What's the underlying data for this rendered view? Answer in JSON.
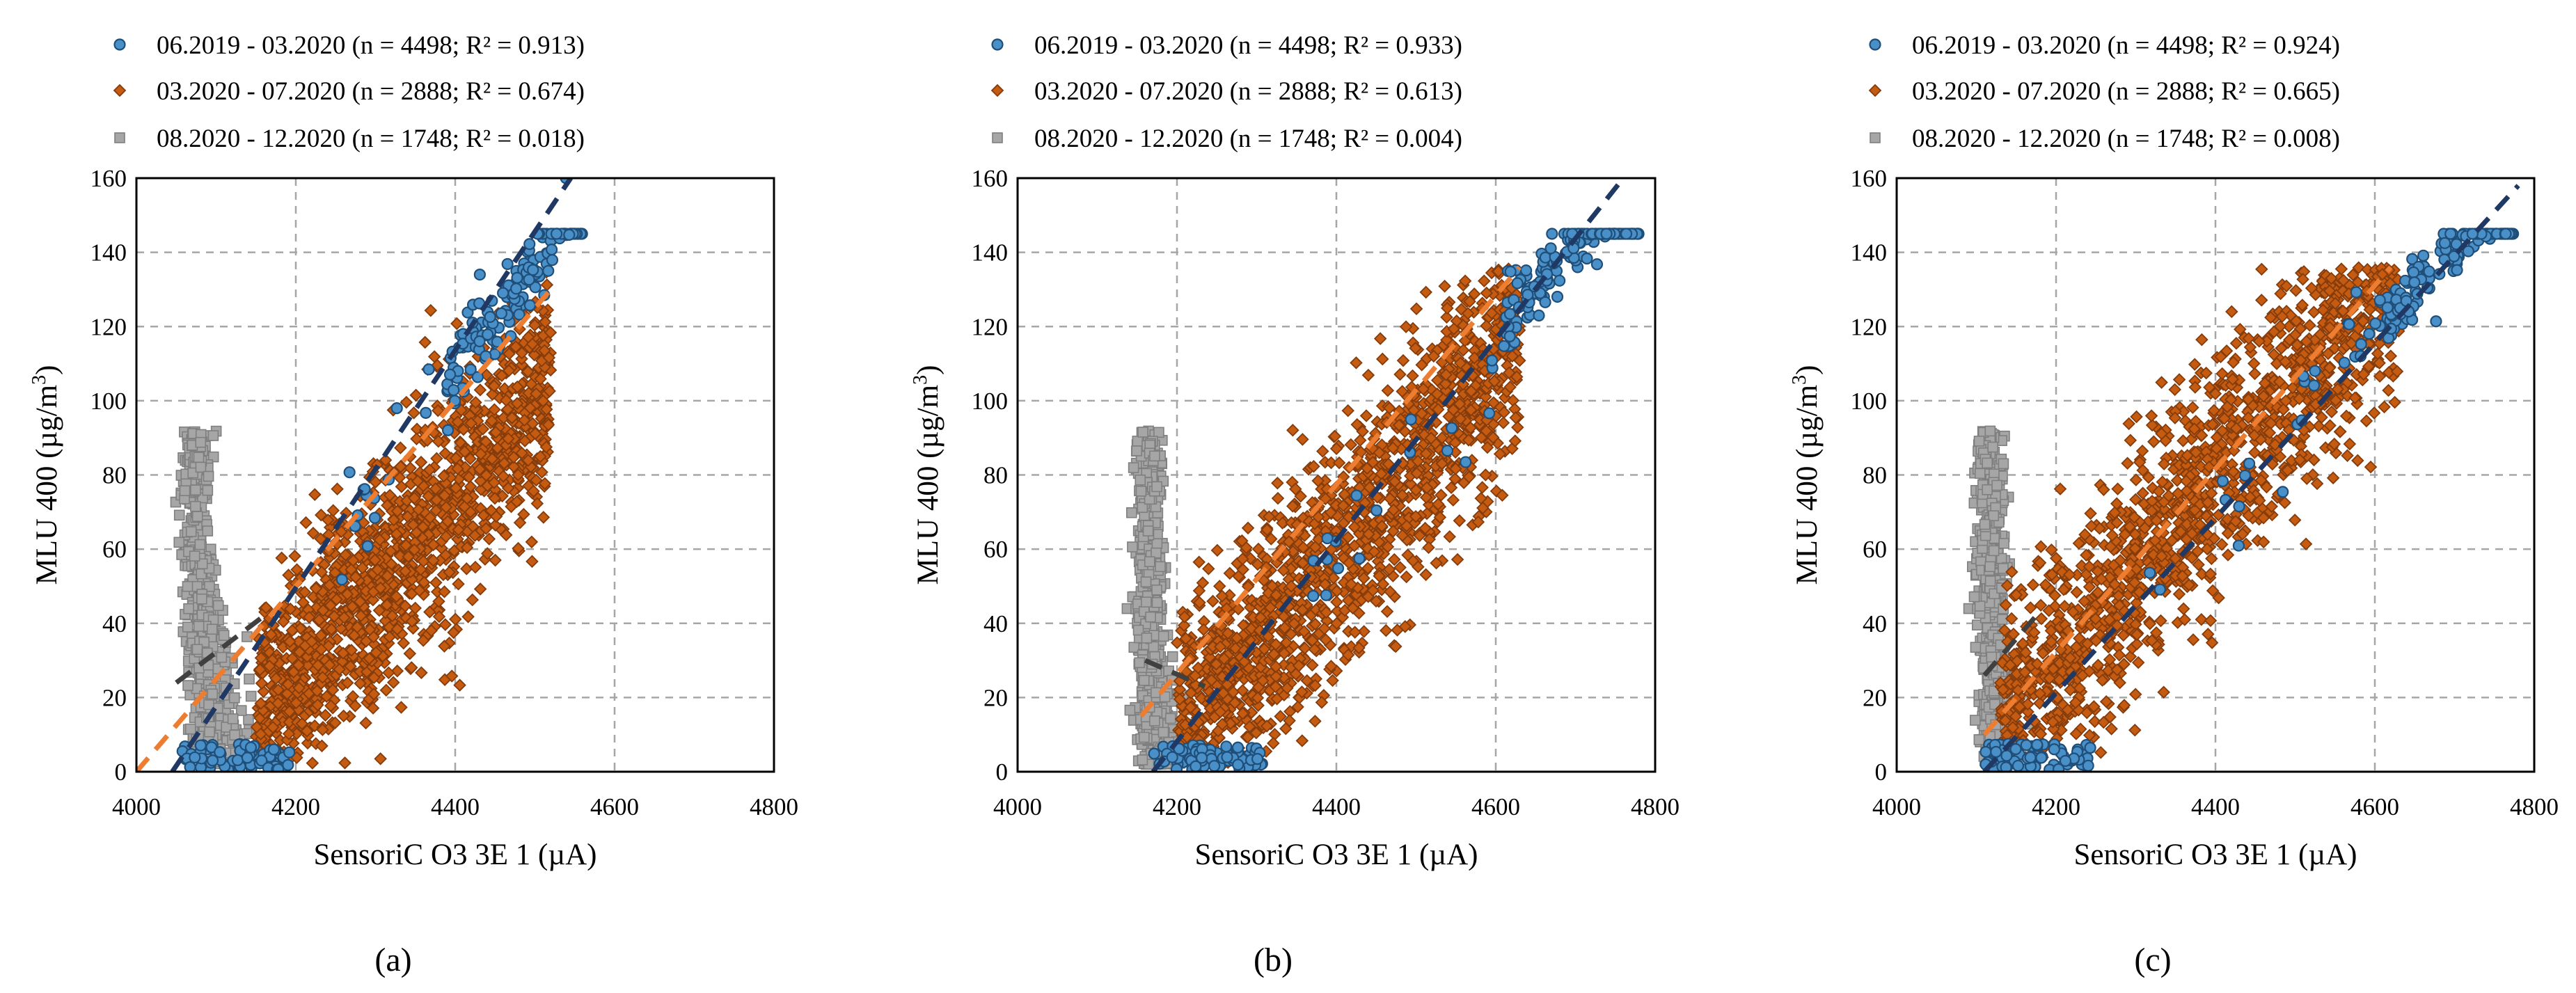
{
  "figure": {
    "colors": {
      "blue_fill": "#4a90c8",
      "blue_edge": "#1f4e79",
      "orange_fill": "#c55a11",
      "orange_edge": "#843c0c",
      "gray_fill": "#a6a6a6",
      "gray_edge": "#7f7f7f",
      "trend_blue": "#1f3864",
      "trend_orange": "#ed7d31",
      "trend_gray": "#404040",
      "grid": "#a6a6a6"
    }
  },
  "chart_data": [
    {
      "type": "scatter",
      "caption": "(a)",
      "xlabel": "SensoriC O3 3E 1 (µA)",
      "ylabel_main": "MLU 400 (µg/m",
      "ylabel_sup": "3",
      "ylabel_tail": ")",
      "xlim": [
        4000,
        4800
      ],
      "ylim": [
        0,
        160
      ],
      "xticks": [
        "4000",
        "4200",
        "4400",
        "4600",
        "4800"
      ],
      "yticks": [
        "0",
        "20",
        "40",
        "60",
        "80",
        "100",
        "120",
        "140",
        "160"
      ],
      "series": [
        {
          "name": "06.2019 - 03.2020 (n = 4498; R² = 0.913)",
          "n": 4498,
          "r2": 0.913,
          "marker": "circle",
          "trend": [
            [
              4045,
              0
            ],
            [
              4545,
              160
            ]
          ]
        },
        {
          "name": "03.2020 - 07.2020 (n = 2888; R² = 0.674)",
          "n": 2888,
          "r2": 0.674,
          "marker": "diamond",
          "trend": [
            [
              4000,
              0
            ],
            [
              4520,
              130
            ]
          ]
        },
        {
          "name": "08.2020 - 12.2020 (n = 1748; R² = 0.018)",
          "n": 1748,
          "r2": 0.018,
          "marker": "square",
          "trend": [
            [
              4050,
              24
            ],
            [
              4160,
              42
            ]
          ]
        }
      ]
    },
    {
      "type": "scatter",
      "caption": "(b)",
      "xlabel": "SensoriC O3 3E 1 (µA)",
      "ylabel_main": "MLU 400 (µg/m",
      "ylabel_sup": "3",
      "ylabel_tail": ")",
      "xlim": [
        4000,
        4800
      ],
      "ylim": [
        0,
        160
      ],
      "xticks": [
        "4000",
        "4200",
        "4400",
        "4600",
        "4800"
      ],
      "yticks": [
        "0",
        "20",
        "40",
        "60",
        "80",
        "100",
        "120",
        "140",
        "160"
      ],
      "series": [
        {
          "name": "06.2019 - 03.2020 (n = 4498; R² = 0.933)",
          "n": 4498,
          "r2": 0.933,
          "marker": "circle",
          "trend": [
            [
              4170,
              0
            ],
            [
              4760,
              160
            ]
          ]
        },
        {
          "name": "03.2020 - 07.2020 (n = 2888; R² = 0.613)",
          "n": 2888,
          "r2": 0.613,
          "marker": "diamond",
          "trend": [
            [
              4155,
              15
            ],
            [
              4630,
              136
            ]
          ]
        },
        {
          "name": "08.2020 - 12.2020 (n = 1748; R² = 0.004)",
          "n": 1748,
          "r2": 0.004,
          "marker": "square",
          "trend": [
            [
              4160,
              30
            ],
            [
              4235,
              23
            ]
          ]
        }
      ]
    },
    {
      "type": "scatter",
      "caption": "(c)",
      "xlabel": "SensoriC O3 3E 1 (µA)",
      "ylabel_main": "MLU 400 (µg/m",
      "ylabel_sup": "3",
      "ylabel_tail": ")",
      "xlim": [
        4000,
        4800
      ],
      "ylim": [
        0,
        160
      ],
      "xticks": [
        "4000",
        "4200",
        "4400",
        "4600",
        "4800"
      ],
      "yticks": [
        "0",
        "20",
        "40",
        "60",
        "80",
        "100",
        "120",
        "140",
        "160"
      ],
      "series": [
        {
          "name": "06.2019 - 03.2020 (n = 4498; R² = 0.924)",
          "n": 4498,
          "r2": 0.924,
          "marker": "circle",
          "trend": [
            [
              4110,
              0
            ],
            [
              4780,
              158
            ]
          ]
        },
        {
          "name": "03.2020 - 07.2020 (n = 2888; R² = 0.665)",
          "n": 2888,
          "r2": 0.665,
          "marker": "diamond",
          "trend": [
            [
              4110,
              10
            ],
            [
              4620,
              136
            ]
          ]
        },
        {
          "name": "08.2020 - 12.2020 (n = 1748; R² = 0.008)",
          "n": 1748,
          "r2": 0.008,
          "marker": "square",
          "trend": [
            [
              4110,
              26
            ],
            [
              4175,
              42
            ]
          ]
        }
      ]
    }
  ]
}
